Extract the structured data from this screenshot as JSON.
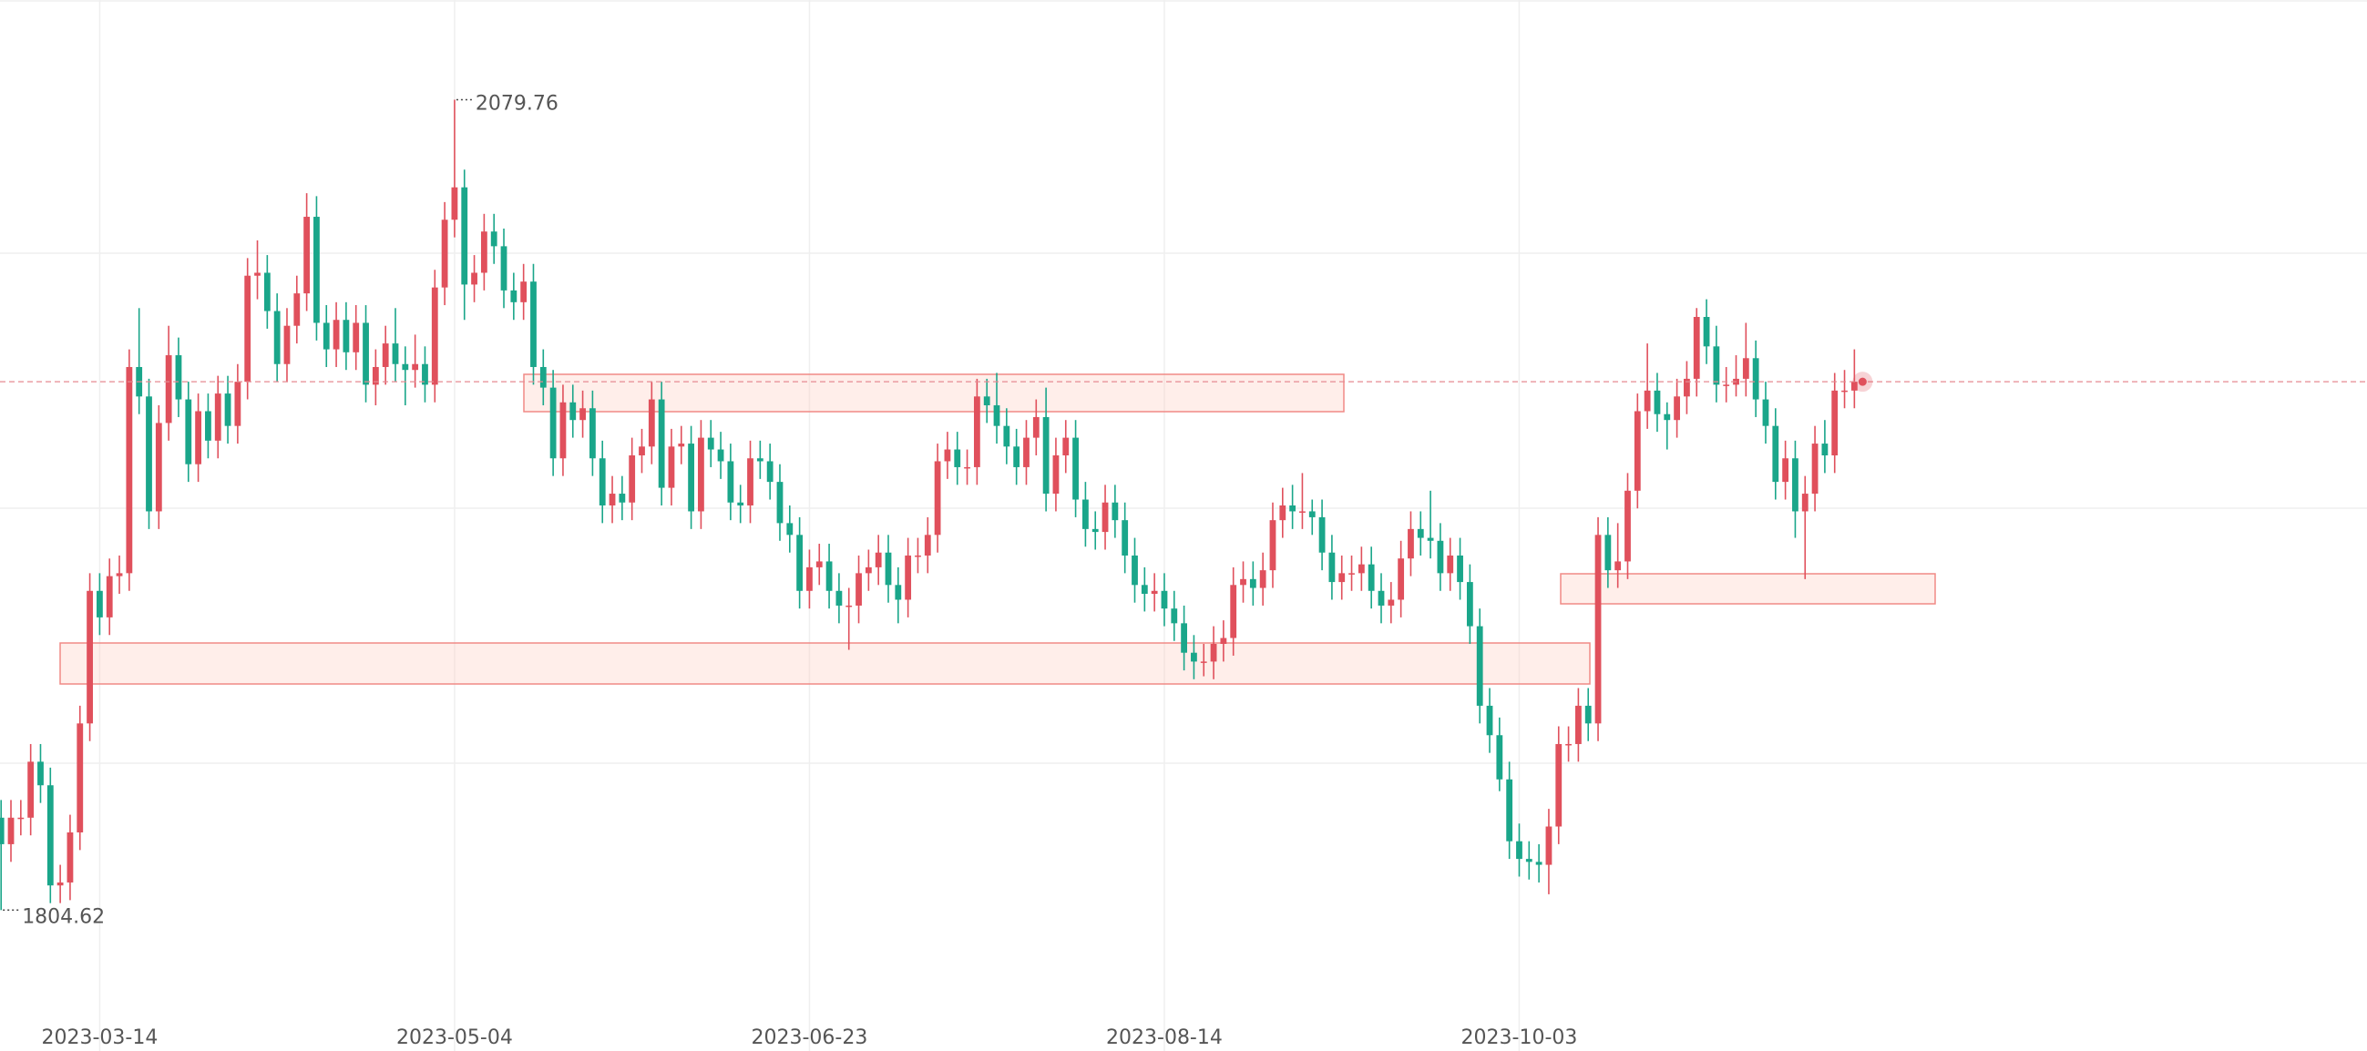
{
  "chart_data": {
    "type": "candlestick",
    "up_color": "#e0505c",
    "down_color": "#1aa68a",
    "ylim": [
      1767.3,
      2113.6
    ],
    "categories": [
      null,
      null,
      null,
      null,
      null,
      null,
      null,
      null,
      null,
      null,
      "2023-03-14",
      null,
      null,
      null,
      null,
      null,
      null,
      null,
      null,
      null,
      null,
      null,
      null,
      null,
      null,
      null,
      null,
      null,
      null,
      null,
      null,
      null,
      null,
      null,
      null,
      null,
      null,
      null,
      null,
      null,
      null,
      null,
      null,
      null,
      null,
      null,
      "2023-05-04",
      null,
      null,
      null,
      null,
      null,
      null,
      null,
      null,
      null,
      null,
      null,
      null,
      null,
      null,
      null,
      null,
      null,
      null,
      null,
      null,
      null,
      null,
      null,
      null,
      null,
      null,
      null,
      null,
      null,
      null,
      null,
      null,
      null,
      null,
      null,
      "2023-06-23",
      null,
      null,
      null,
      null,
      null,
      null,
      null,
      null,
      null,
      null,
      null,
      null,
      null,
      null,
      null,
      null,
      null,
      null,
      null,
      null,
      null,
      null,
      null,
      null,
      null,
      null,
      null,
      null,
      null,
      null,
      null,
      null,
      null,
      null,
      null,
      "2023-08-14",
      null,
      null,
      null,
      null,
      null,
      null,
      null,
      null,
      null,
      null,
      null,
      null,
      null,
      null,
      null,
      null,
      null,
      null,
      null,
      null,
      null,
      null,
      null,
      null,
      null,
      null,
      null,
      null,
      null,
      null,
      null,
      null,
      null,
      null,
      null,
      "2023-10-03",
      null,
      null,
      null,
      null,
      null,
      null,
      null,
      null,
      null,
      null,
      null,
      null,
      null,
      null,
      null,
      null,
      null,
      null,
      null,
      null,
      null,
      null,
      null,
      null,
      null,
      null,
      null,
      null,
      null,
      null,
      null,
      null,
      null,
      null
    ],
    "open": [
      1836,
      1827,
      1836,
      1836,
      1855,
      1847,
      1813,
      1814,
      1831,
      1868,
      1913,
      1904,
      1918,
      1919,
      1989,
      1979,
      1940,
      1970,
      1993,
      1978,
      1956,
      1974,
      1964,
      1980,
      1969,
      1984,
      2020,
      2021,
      2008,
      1990,
      2003,
      2014,
      2040,
      2004,
      1995,
      2005,
      1994,
      2004,
      1983,
      1989,
      1997,
      1990,
      1988,
      1990,
      1983,
      2016,
      2039,
      2050,
      2017,
      2021,
      2035,
      2030,
      2015,
      2011,
      2018,
      1989,
      1982,
      1958,
      1977,
      1971,
      1975,
      1958,
      1942,
      1946,
      1943,
      1959,
      1962,
      1978,
      1948,
      1962,
      1963,
      1940,
      1965,
      1961,
      1957,
      1943,
      1942,
      1958,
      1957,
      1950,
      1936,
      1932,
      1913,
      1921,
      1923,
      1913,
      1908,
      1908,
      1919,
      1921,
      1926,
      1915,
      1910,
      1925,
      1925,
      1932,
      1957,
      1961,
      1955,
      1955,
      1979,
      1976,
      1969,
      1962,
      1955,
      1965,
      1972,
      1946,
      1959,
      1965,
      1944,
      1934,
      1933,
      1943,
      1937,
      1925,
      1915,
      1912,
      1913,
      1907,
      1902,
      1892,
      1889,
      1889,
      1895,
      1897,
      1915,
      1917,
      1914,
      1920,
      1937,
      1942,
      1940,
      1940,
      1938,
      1926,
      1916,
      1919,
      1919,
      1922,
      1913,
      1908,
      1910,
      1924,
      1934,
      1931,
      1930,
      1919,
      1925,
      1916,
      1901,
      1874,
      1864,
      1849,
      1828,
      1822,
      1821,
      1820,
      1833,
      1861,
      1861,
      1874,
      1868,
      1932,
      1920,
      1923,
      1947,
      1974,
      1981,
      1973,
      1971,
      1979,
      1985,
      2006,
      1996,
      1983,
      1983,
      1985,
      1992,
      1978,
      1969,
      1950,
      1958,
      1940,
      1946,
      1963,
      1959,
      1981,
      1981
    ],
    "high": [
      1842,
      1842,
      1842,
      1861,
      1861,
      1853,
      1820,
      1837,
      1874,
      1919,
      1919,
      1924,
      1925,
      1995,
      2009,
      1985,
      1976,
      2003,
      1999,
      1984,
      1980,
      1980,
      1986,
      1986,
      1990,
      2026,
      2032,
      2027,
      2014,
      2009,
      2020,
      2048,
      2047,
      2010,
      2011,
      2011,
      2010,
      2010,
      1995,
      2003,
      2009,
      1996,
      2000,
      1996,
      2022,
      2045,
      2079.76,
      2056,
      2027,
      2041,
      2041,
      2036,
      2021,
      2024,
      2024,
      1995,
      1988,
      1983,
      1983,
      1981,
      1981,
      1964,
      1952,
      1952,
      1965,
      1968,
      1984,
      1984,
      1968,
      1969,
      1969,
      1971,
      1971,
      1967,
      1963,
      1949,
      1964,
      1964,
      1963,
      1956,
      1942,
      1938,
      1927,
      1929,
      1929,
      1919,
      1914,
      1925,
      1927,
      1932,
      1932,
      1921,
      1931,
      1931,
      1938,
      1963,
      1967,
      1967,
      1961,
      1985,
      1985,
      1987,
      1975,
      1968,
      1971,
      1978,
      1982,
      1965,
      1971,
      1971,
      1950,
      1940,
      1949,
      1949,
      1943,
      1931,
      1921,
      1919,
      1919,
      1913,
      1908,
      1898,
      1895,
      1901,
      1903,
      1921,
      1923,
      1923,
      1926,
      1943,
      1948,
      1949,
      1953,
      1944,
      1944,
      1932,
      1925,
      1925,
      1928,
      1928,
      1919,
      1916,
      1930,
      1940,
      1940,
      1947,
      1936,
      1931,
      1931,
      1922,
      1907,
      1880,
      1870,
      1855,
      1834,
      1828,
      1827,
      1839,
      1867,
      1867,
      1880,
      1880,
      1938,
      1938,
      1936,
      1953,
      1980,
      1997,
      1987,
      1977,
      1985,
      1991,
      2009,
      2012,
      2003,
      1989,
      1993,
      2004,
      1998,
      1984,
      1975,
      1964,
      1964,
      1952,
      1969,
      1971,
      1987,
      1988,
      1995
    ],
    "low": [
      1804.62,
      1821,
      1830,
      1830,
      1841,
      1807,
      1807,
      1808,
      1825,
      1862,
      1898,
      1898,
      1912,
      1913,
      1973,
      1934,
      1934,
      1964,
      1972,
      1950,
      1950,
      1958,
      1958,
      1963,
      1963,
      1978,
      2012,
      2002,
      1984,
      1984,
      1997,
      2008,
      1998,
      1989,
      1989,
      1988,
      1988,
      1977,
      1976,
      1983,
      1984,
      1976,
      1982,
      1977,
      1977,
      2010,
      2033,
      2005,
      2011,
      2015,
      2024,
      2009,
      2005,
      2005,
      1983,
      1976,
      1952,
      1952,
      1965,
      1965,
      1952,
      1936,
      1936,
      1937,
      1937,
      1953,
      1956,
      1942,
      1942,
      1956,
      1934,
      1934,
      1955,
      1951,
      1937,
      1936,
      1936,
      1951,
      1944,
      1930,
      1926,
      1907,
      1907,
      1915,
      1907,
      1902,
      1893,
      1902,
      1913,
      1915,
      1909,
      1902,
      1904,
      1919,
      1919,
      1926,
      1951,
      1949,
      1949,
      1949,
      1970,
      1963,
      1956,
      1949,
      1949,
      1959,
      1940,
      1940,
      1953,
      1938,
      1928,
      1927,
      1927,
      1931,
      1919,
      1909,
      1906,
      1906,
      1901,
      1896,
      1886,
      1883,
      1884,
      1883,
      1889,
      1891,
      1909,
      1908,
      1908,
      1914,
      1931,
      1934,
      1934,
      1932,
      1920,
      1910,
      1910,
      1913,
      1913,
      1907,
      1902,
      1902,
      1904,
      1918,
      1925,
      1924,
      1913,
      1913,
      1910,
      1895,
      1868,
      1858,
      1845,
      1822,
      1816,
      1815,
      1814,
      1810,
      1827,
      1855,
      1855,
      1862,
      1862,
      1914,
      1914,
      1917,
      1941,
      1968,
      1967,
      1961,
      1965,
      1973,
      1979,
      1990,
      1977,
      1977,
      1979,
      1979,
      1972,
      1963,
      1944,
      1944,
      1931,
      1917,
      1940,
      1953,
      1953,
      1975,
      1975
    ],
    "close": [
      1827,
      1836,
      1836,
      1855,
      1847,
      1813,
      1814,
      1831,
      1868,
      1913,
      1904,
      1918,
      1919,
      1989,
      1979,
      1940,
      1970,
      1993,
      1978,
      1956,
      1974,
      1964,
      1980,
      1969,
      1984,
      2020,
      2021,
      2008,
      1990,
      2003,
      2014,
      2040,
      2004,
      1995,
      2005,
      1994,
      2004,
      1983,
      1989,
      1997,
      1990,
      1988,
      1990,
      1983,
      2016,
      2039,
      2050,
      2017,
      2021,
      2035,
      2030,
      2015,
      2011,
      2018,
      1989,
      1982,
      1958,
      1977,
      1971,
      1975,
      1958,
      1942,
      1946,
      1943,
      1959,
      1962,
      1978,
      1948,
      1962,
      1963,
      1940,
      1965,
      1961,
      1957,
      1943,
      1942,
      1958,
      1957,
      1950,
      1936,
      1932,
      1913,
      1921,
      1923,
      1913,
      1908,
      1908,
      1919,
      1921,
      1926,
      1915,
      1910,
      1925,
      1925,
      1932,
      1957,
      1961,
      1955,
      1955,
      1979,
      1976,
      1969,
      1962,
      1955,
      1965,
      1972,
      1946,
      1959,
      1965,
      1944,
      1934,
      1933,
      1943,
      1937,
      1925,
      1915,
      1912,
      1913,
      1907,
      1902,
      1892,
      1889,
      1889,
      1895,
      1897,
      1915,
      1917,
      1914,
      1920,
      1937,
      1942,
      1940,
      1940,
      1938,
      1926,
      1916,
      1919,
      1919,
      1922,
      1913,
      1908,
      1910,
      1924,
      1934,
      1931,
      1930,
      1919,
      1925,
      1916,
      1901,
      1874,
      1864,
      1849,
      1828,
      1822,
      1821,
      1820,
      1833,
      1861,
      1861,
      1874,
      1868,
      1932,
      1920,
      1923,
      1947,
      1974,
      1981,
      1973,
      1971,
      1979,
      1985,
      2006,
      1996,
      1983,
      1983,
      1985,
      1992,
      1978,
      1969,
      1950,
      1958,
      1940,
      1946,
      1963,
      1959,
      1981,
      1981,
      1984
    ]
  }
}
